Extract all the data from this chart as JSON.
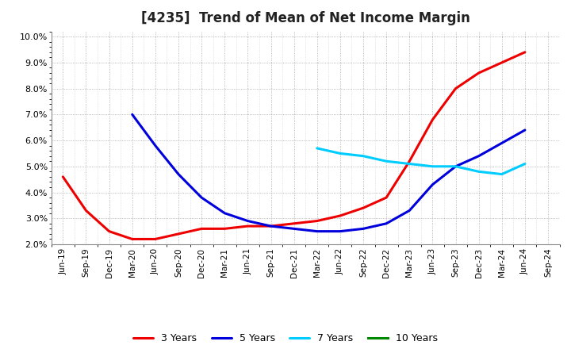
{
  "title": "[4235]  Trend of Mean of Net Income Margin",
  "ylim": [
    0.02,
    0.102
  ],
  "yticks": [
    0.02,
    0.03,
    0.04,
    0.05,
    0.06,
    0.07,
    0.08,
    0.09,
    0.1
  ],
  "background_color": "#ffffff",
  "plot_bg_color": "#ffffff",
  "grid_color": "#999999",
  "x_labels": [
    "Jun-19",
    "Sep-19",
    "Dec-19",
    "Mar-20",
    "Jun-20",
    "Sep-20",
    "Dec-20",
    "Mar-21",
    "Jun-21",
    "Sep-21",
    "Dec-21",
    "Mar-22",
    "Jun-22",
    "Sep-22",
    "Dec-22",
    "Mar-23",
    "Jun-23",
    "Sep-23",
    "Dec-23",
    "Mar-24",
    "Jun-24",
    "Sep-24"
  ],
  "series": {
    "3 Years": {
      "color": "#ee0000",
      "data": [
        0.046,
        0.033,
        0.025,
        0.022,
        0.022,
        0.024,
        0.026,
        0.026,
        0.027,
        0.027,
        0.028,
        0.029,
        0.031,
        0.034,
        0.038,
        0.052,
        0.068,
        0.08,
        0.086,
        0.09,
        0.094,
        null
      ]
    },
    "5 Years": {
      "color": "#0000dd",
      "data": [
        null,
        null,
        null,
        0.07,
        0.058,
        0.047,
        0.038,
        0.032,
        0.029,
        0.027,
        0.026,
        0.025,
        0.025,
        0.026,
        0.028,
        0.033,
        0.043,
        0.05,
        0.054,
        0.059,
        0.064,
        null
      ]
    },
    "7 Years": {
      "color": "#00ccff",
      "data": [
        null,
        null,
        null,
        null,
        null,
        null,
        null,
        null,
        null,
        null,
        null,
        0.057,
        0.055,
        0.054,
        0.052,
        0.051,
        0.05,
        0.05,
        0.048,
        0.047,
        0.051,
        null
      ]
    },
    "10 Years": {
      "color": "#008800",
      "data": [
        null,
        null,
        null,
        null,
        null,
        null,
        null,
        null,
        null,
        null,
        null,
        null,
        null,
        null,
        null,
        null,
        null,
        null,
        null,
        null,
        null,
        null
      ]
    }
  },
  "legend_order": [
    "3 Years",
    "5 Years",
    "7 Years",
    "10 Years"
  ],
  "title_fontsize": 12,
  "tick_fontsize": 8,
  "linewidth": 2.2
}
